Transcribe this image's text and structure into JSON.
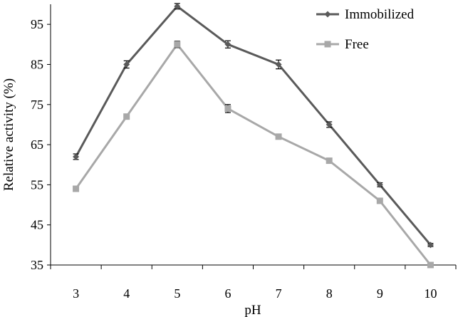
{
  "chart_data": {
    "type": "line",
    "xlabel": "pH",
    "ylabel": "Relative activity (%)",
    "categories": [
      "3",
      "4",
      "5",
      "6",
      "7",
      "8",
      "9",
      "10"
    ],
    "ylim": [
      35,
      100
    ],
    "yticks": [
      35,
      45,
      55,
      65,
      75,
      85,
      95
    ],
    "grid": false,
    "legend_position": "top-right",
    "series": [
      {
        "name": "Immobilized",
        "values": [
          62,
          85,
          99.5,
          90,
          85,
          70,
          55,
          40
        ],
        "errors": [
          0.7,
          0.9,
          0.7,
          0.9,
          1.1,
          0.7,
          0.5,
          0.4
        ],
        "color": "#5a5a5a",
        "marker": "diamond"
      },
      {
        "name": "Free",
        "values": [
          54,
          72,
          90,
          74,
          67,
          61,
          51,
          35
        ],
        "errors": [
          0,
          0,
          0.8,
          1.0,
          0,
          0,
          0,
          0
        ],
        "color": "#a8a8a8",
        "marker": "square"
      }
    ]
  }
}
